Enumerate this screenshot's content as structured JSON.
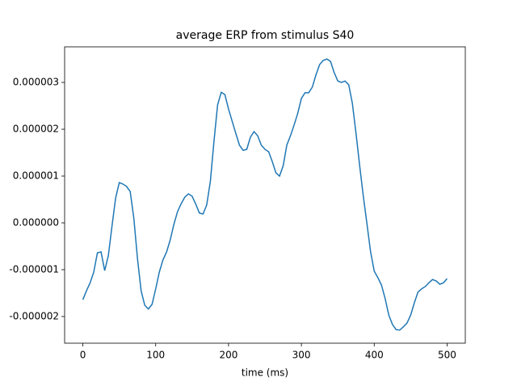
{
  "chart_data": {
    "type": "line",
    "title": "average ERP from stimulus S40",
    "x_label": "time (ms)",
    "x": [
      0,
      5,
      10,
      15,
      20,
      25,
      30,
      35,
      40,
      45,
      50,
      55,
      60,
      65,
      70,
      75,
      80,
      85,
      90,
      95,
      100,
      105,
      110,
      115,
      120,
      125,
      130,
      135,
      140,
      145,
      150,
      155,
      160,
      165,
      170,
      175,
      180,
      185,
      190,
      195,
      200,
      205,
      210,
      215,
      220,
      225,
      230,
      235,
      240,
      245,
      250,
      255,
      260,
      265,
      270,
      275,
      280,
      285,
      290,
      295,
      300,
      305,
      310,
      315,
      320,
      325,
      330,
      335,
      340,
      345,
      350,
      355,
      360,
      365,
      370,
      375,
      380,
      385,
      390,
      395,
      400,
      405,
      410,
      415,
      420,
      425,
      430,
      435,
      440,
      445,
      450,
      455,
      460,
      465,
      470,
      475,
      480,
      485,
      490,
      495,
      500
    ],
    "series": [
      {
        "color": "#1f77b4",
        "values": [
          -1.64e-06,
          -1.45e-06,
          -1.28e-06,
          -1.05e-06,
          -6.4e-07,
          -6.2e-07,
          -1.02e-06,
          -7e-07,
          -7e-08,
          5.3e-07,
          8.6e-07,
          8.3e-07,
          7.8e-07,
          6.7e-07,
          1e-07,
          -7.6e-07,
          -1.45e-06,
          -1.76e-06,
          -1.84e-06,
          -1.74e-06,
          -1.41e-06,
          -1.05e-06,
          -7.9e-07,
          -6.2e-07,
          -3.6e-07,
          -3e-08,
          2.4e-07,
          4.1e-07,
          5.5e-07,
          6.2e-07,
          5.7e-07,
          4e-07,
          2.1e-07,
          1.9e-07,
          3.8e-07,
          8.8e-07,
          1.74e-06,
          2.52e-06,
          2.79e-06,
          2.74e-06,
          2.43e-06,
          2.17e-06,
          1.91e-06,
          1.66e-06,
          1.55e-06,
          1.57e-06,
          1.83e-06,
          1.95e-06,
          1.86e-06,
          1.66e-06,
          1.57e-06,
          1.52e-06,
          1.31e-06,
          1.07e-06,
          1e-06,
          1.22e-06,
          1.66e-06,
          1.86e-06,
          2.09e-06,
          2.34e-06,
          2.66e-06,
          2.78e-06,
          2.78e-06,
          2.9e-06,
          3.16e-06,
          3.38e-06,
          3.47e-06,
          3.5e-06,
          3.45e-06,
          3.21e-06,
          3.03e-06,
          3e-06,
          3.03e-06,
          2.95e-06,
          2.55e-06,
          1.91e-06,
          1.22e-06,
          5.7e-07,
          -2e-08,
          -6.2e-07,
          -1.03e-06,
          -1.17e-06,
          -1.33e-06,
          -1.62e-06,
          -1.97e-06,
          -2.17e-06,
          -2.28e-06,
          -2.29e-06,
          -2.22e-06,
          -2.14e-06,
          -1.97e-06,
          -1.71e-06,
          -1.48e-06,
          -1.41e-06,
          -1.36e-06,
          -1.28e-06,
          -1.21e-06,
          -1.24e-06,
          -1.31e-06,
          -1.28e-06,
          -1.19e-06
        ]
      }
    ],
    "xlim": [
      -25,
      525
    ],
    "xticks": [
      0,
      100,
      200,
      300,
      400,
      500
    ],
    "ylim": [
      -2.57e-06,
      3.76e-06
    ],
    "yticks": [
      {
        "value": -2e-06,
        "label": "-0.000002"
      },
      {
        "value": -1e-06,
        "label": "-0.000001"
      },
      {
        "value": 0,
        "label": "0.000000"
      },
      {
        "value": 1e-06,
        "label": "0.000001"
      },
      {
        "value": 2e-06,
        "label": "0.000002"
      },
      {
        "value": 3e-06,
        "label": "0.000003"
      }
    ]
  }
}
